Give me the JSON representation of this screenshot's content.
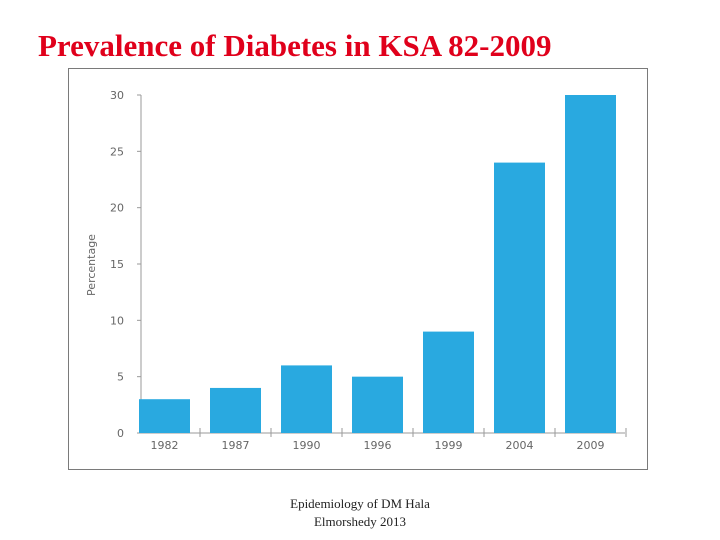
{
  "slide": {
    "title": "Prevalence of Diabetes in KSA 82-2009",
    "footer_line1": "Epidemiology of DM   Hala",
    "footer_line2": "Elmorshedy  2013"
  },
  "colors": {
    "title": "#e0001b",
    "bar": "#29a9e0",
    "axis": "#9a9a9a",
    "tick_text": "#666666"
  },
  "chart_data": {
    "type": "bar",
    "categories": [
      "1982",
      "1987",
      "1990",
      "1996",
      "1999",
      "2004",
      "2009"
    ],
    "values": [
      3,
      4,
      6,
      5,
      9,
      24,
      30
    ],
    "ylabel": "Percentage",
    "xlabel": "",
    "ylim": [
      0,
      30
    ],
    "yticks": [
      0,
      5,
      10,
      15,
      20,
      25,
      30
    ],
    "grid": false,
    "legend": "none"
  }
}
